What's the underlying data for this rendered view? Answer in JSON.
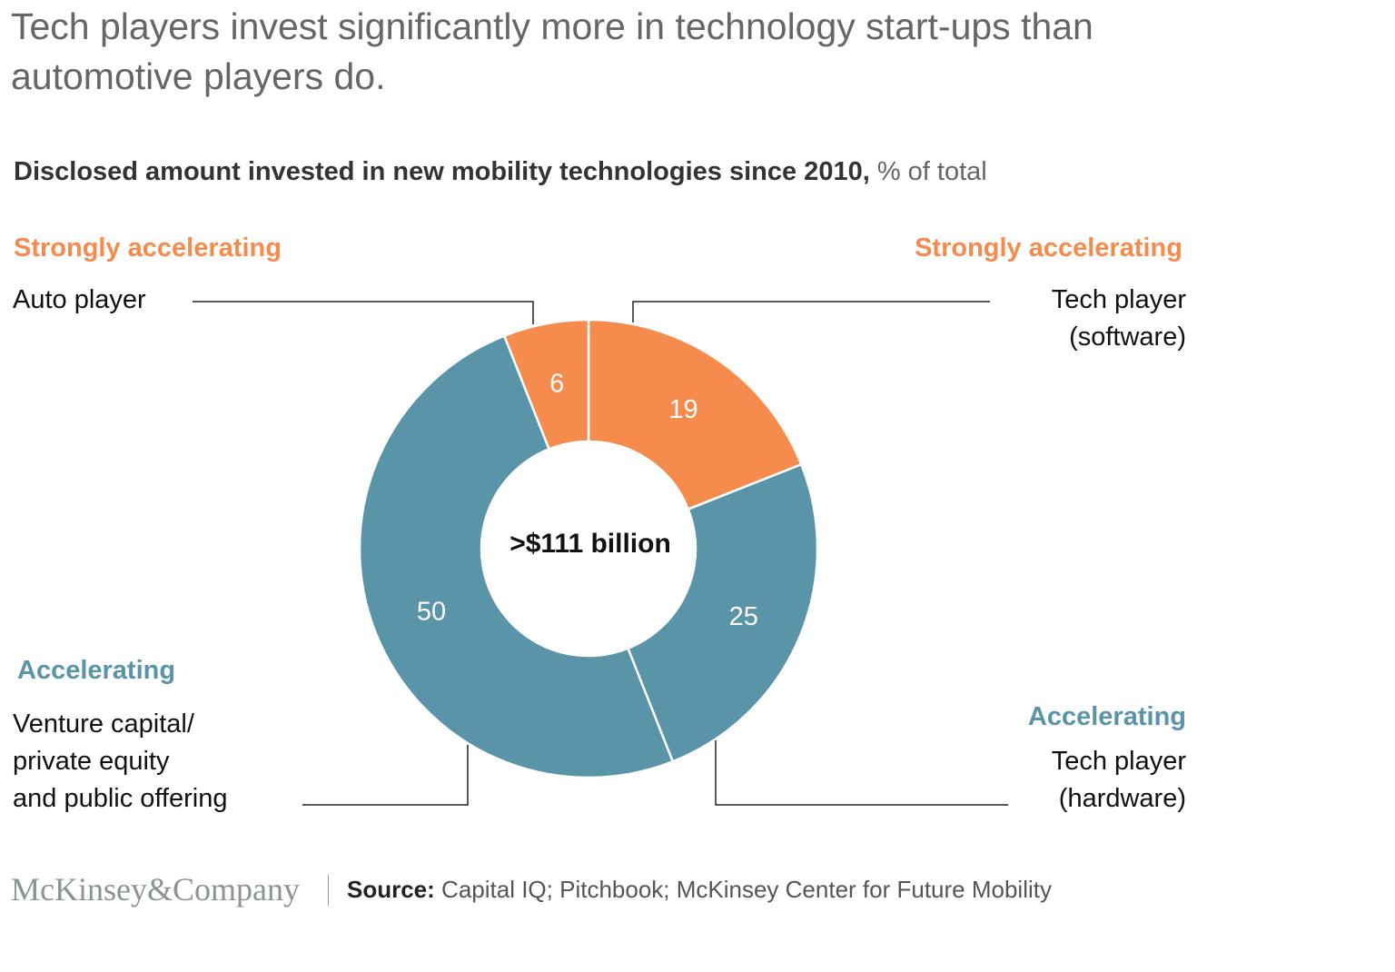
{
  "title": "Tech players invest significantly more in technology start-ups than automotive players do.",
  "subtitle": "Disclosed amount invested in new mobility technologies since 2010,",
  "subtitle_unit": "% of total",
  "colors": {
    "orange": "#F58B4C",
    "teal": "#5A94A8"
  },
  "chart_data": {
    "type": "pie",
    "donut": true,
    "center_label": ">$111 billion",
    "slices": [
      {
        "label": "Tech player (software)",
        "value": 19,
        "category": "Strongly accelerating",
        "color": "#F58B4C"
      },
      {
        "label": "Tech player (hardware)",
        "value": 25,
        "category": "Accelerating",
        "color": "#5A94A8"
      },
      {
        "label": "Venture capital/ private equity and public offering",
        "value": 50,
        "category": "Accelerating",
        "color": "#5A94A8"
      },
      {
        "label": "Auto player",
        "value": 6,
        "category": "Strongly accelerating",
        "color": "#F58B4C"
      }
    ]
  },
  "labels": {
    "auto": {
      "category": "Strongly accelerating",
      "lines": [
        "Auto player"
      ]
    },
    "software": {
      "category": "Strongly accelerating",
      "lines": [
        "Tech player",
        "(software)"
      ]
    },
    "vc": {
      "category": "Accelerating",
      "lines": [
        "Venture capital/",
        "private equity",
        "and public offering"
      ]
    },
    "hardware": {
      "category": "Accelerating",
      "lines": [
        "Tech player",
        "(hardware)"
      ]
    }
  },
  "footer": {
    "logo": "McKinsey&Company",
    "source_label": "Source:",
    "source_text": "Capital IQ; Pitchbook; McKinsey Center for Future Mobility"
  }
}
